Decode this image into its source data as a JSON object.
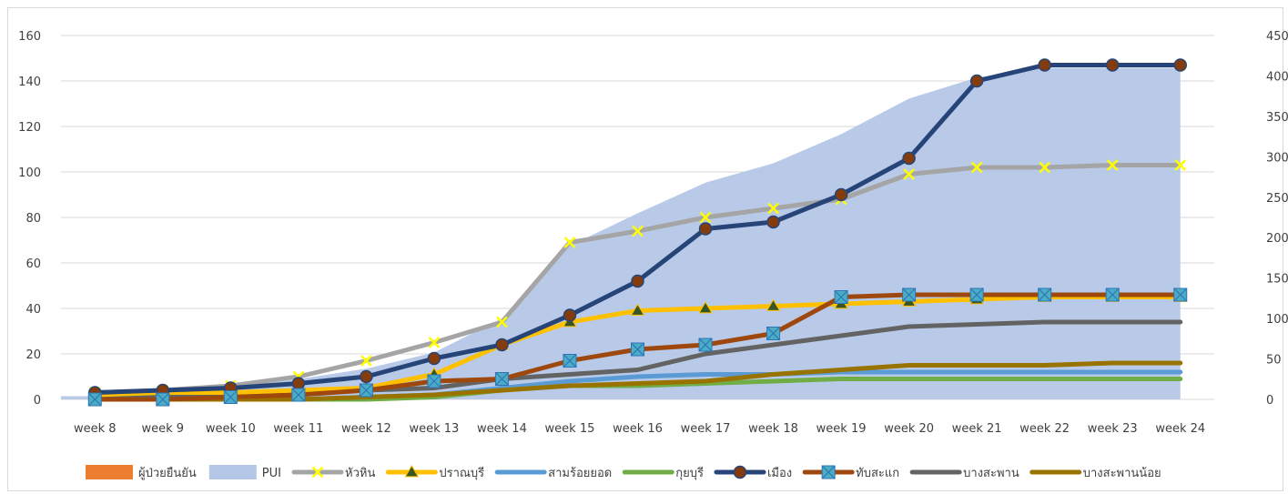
{
  "chart_data": {
    "type": "area+line",
    "categories": [
      "week 8",
      "week 9",
      "week 10",
      "week 11",
      "week 12",
      "week 13",
      "week 14",
      "week 15",
      "week 16",
      "week 17",
      "week 18",
      "week 19",
      "week 20",
      "week 21",
      "week 22",
      "week 23",
      "week 24"
    ],
    "y_left": {
      "ylim": [
        0,
        160
      ],
      "ticks": [
        "0",
        "20",
        "40",
        "60",
        "80",
        "100",
        "120",
        "140",
        "160"
      ]
    },
    "y_right": {
      "ylim": [
        0,
        450
      ],
      "ticks": [
        "0",
        "50",
        "100",
        "150",
        "200",
        "250",
        "300",
        "350",
        "400",
        "450"
      ]
    },
    "area_series": [
      {
        "name": "ผู้ป่วยยืนยัน",
        "color": "#ed7d31",
        "axis": "right",
        "values": [
          0,
          0,
          0,
          0,
          0,
          0,
          0,
          0,
          0,
          0,
          0,
          0,
          0,
          0,
          0,
          0,
          0
        ]
      },
      {
        "name": "PUI",
        "color": "#b4c7e7",
        "axis": "right",
        "values": [
          4,
          8,
          15,
          25,
          38,
          58,
          100,
          190,
          230,
          268,
          292,
          328,
          372,
          398,
          410,
          410,
          410
        ]
      }
    ],
    "line_series": [
      {
        "name": "หัวหิน",
        "color": "#a5a5a5",
        "marker": "x",
        "marker_color": "#ffff00",
        "values": [
          3,
          4,
          6,
          10,
          17,
          25,
          34,
          69,
          74,
          80,
          84,
          88,
          99,
          102,
          102,
          103,
          103
        ]
      },
      {
        "name": "ปราณบุรี",
        "color": "#ffc000",
        "marker": "triangle",
        "marker_color": "#375623",
        "values": [
          2,
          3,
          3,
          4,
          5,
          11,
          24,
          34,
          39,
          40,
          41,
          42,
          43,
          44,
          45,
          45,
          45
        ]
      },
      {
        "name": "สามร้อยยอด",
        "color": "#5b9bd5",
        "marker": "none",
        "values": [
          0,
          0,
          0,
          0,
          1,
          2,
          5,
          8,
          10,
          11,
          11,
          12,
          12,
          12,
          12,
          12,
          12
        ]
      },
      {
        "name": "กุยบุรี",
        "color": "#70ad47",
        "marker": "none",
        "values": [
          0,
          0,
          0,
          0,
          0,
          1,
          4,
          6,
          6,
          7,
          8,
          9,
          9,
          9,
          9,
          9,
          9
        ]
      },
      {
        "name": "เมือง",
        "color": "#264478",
        "marker": "circle",
        "marker_color": "#843c0c",
        "values": [
          3,
          4,
          5,
          7,
          10,
          18,
          24,
          37,
          52,
          75,
          78,
          90,
          106,
          140,
          147,
          147,
          147
        ]
      },
      {
        "name": "ทับสะแก",
        "color": "#9e480e",
        "marker": "square-x",
        "marker_color": "#4bacc6",
        "values": [
          0,
          0,
          1,
          2,
          4,
          8,
          9,
          17,
          22,
          24,
          29,
          45,
          46,
          46,
          46,
          46,
          46
        ]
      },
      {
        "name": "บางสะพาน",
        "color": "#636363",
        "marker": "none",
        "values": [
          1,
          1,
          2,
          3,
          4,
          5,
          9,
          11,
          13,
          20,
          24,
          28,
          32,
          33,
          34,
          34,
          34
        ]
      },
      {
        "name": "บางสะพานน้อย",
        "color": "#997300",
        "marker": "none",
        "values": [
          0,
          0,
          0,
          0,
          1,
          2,
          4,
          6,
          7,
          8,
          11,
          13,
          15,
          15,
          15,
          16,
          16
        ]
      }
    ],
    "legend_position": "bottom",
    "grid": true
  }
}
